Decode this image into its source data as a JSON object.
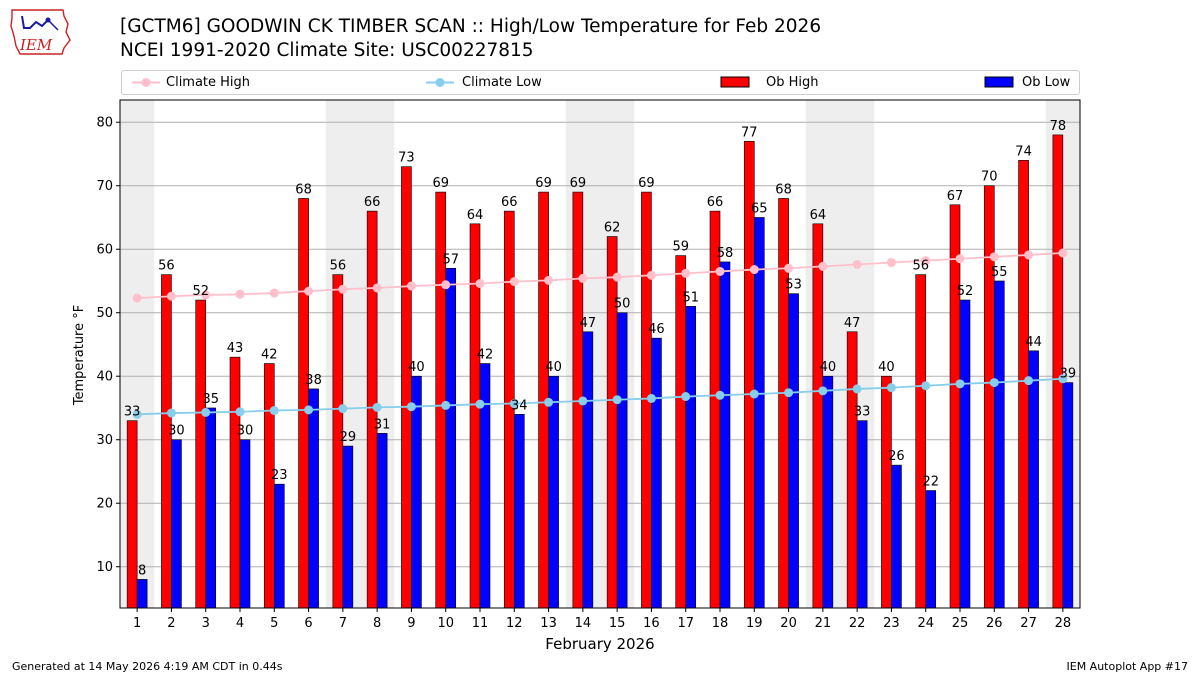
{
  "header": {
    "logo_text": "IEM",
    "title_line1": "[GCTM6] GOODWIN CK TIMBER SCAN :: High/Low Temperature for Feb 2026",
    "title_line2": "NCEI 1991-2020 Climate Site: USC00227815"
  },
  "legend": {
    "climate_high": "Climate High",
    "climate_low": "Climate Low",
    "ob_high": "Ob High",
    "ob_low": "Ob Low"
  },
  "footer": {
    "generated": "Generated at 14 May 2026 4:19 AM CDT in 0.44s",
    "app": "IEM Autoplot App #17"
  },
  "colors": {
    "ob_high": "#ff0000",
    "ob_low": "#0000ff",
    "climate_high": "#ffc0cb",
    "climate_low": "#87ceeb",
    "weekend_shade": "#eeeeee",
    "grid": "#b0b0b0"
  },
  "chart_data": {
    "type": "bar",
    "xlabel": "February 2026",
    "ylabel": "Temperature °F",
    "ylim": [
      3.5,
      83.5
    ],
    "yticks": [
      10,
      20,
      30,
      40,
      50,
      60,
      70,
      80
    ],
    "grid": "horizontal",
    "legend_position": "top",
    "weekend_shaded_days": [
      1,
      7,
      8,
      14,
      15,
      21,
      22,
      28
    ],
    "categories": [
      1,
      2,
      3,
      4,
      5,
      6,
      7,
      8,
      9,
      10,
      11,
      12,
      13,
      14,
      15,
      16,
      17,
      18,
      19,
      20,
      21,
      22,
      23,
      24,
      25,
      26,
      27,
      28
    ],
    "ob_high": [
      33,
      56,
      52,
      43,
      42,
      68,
      56,
      66,
      73,
      69,
      64,
      66,
      69,
      69,
      62,
      69,
      59,
      66,
      77,
      68,
      64,
      47,
      40,
      56,
      67,
      70,
      74,
      78
    ],
    "ob_low": [
      8,
      30,
      35,
      30,
      23,
      38,
      29,
      31,
      40,
      57,
      42,
      34,
      40,
      47,
      50,
      46,
      51,
      58,
      65,
      53,
      40,
      33,
      26,
      22,
      52,
      55,
      44,
      39
    ],
    "climate_high": [
      52.3,
      52.6,
      52.8,
      52.9,
      53.1,
      53.4,
      53.7,
      53.9,
      54.2,
      54.4,
      54.6,
      54.9,
      55.1,
      55.4,
      55.6,
      55.9,
      56.2,
      56.5,
      56.8,
      57.0,
      57.3,
      57.6,
      57.9,
      58.2,
      58.5,
      58.8,
      59.1,
      59.4
    ],
    "climate_low": [
      34.0,
      34.2,
      34.3,
      34.4,
      34.6,
      34.7,
      34.9,
      35.1,
      35.2,
      35.4,
      35.6,
      35.7,
      35.9,
      36.1,
      36.3,
      36.5,
      36.8,
      37.0,
      37.2,
      37.4,
      37.7,
      38.0,
      38.2,
      38.5,
      38.8,
      39.0,
      39.3,
      39.6
    ]
  }
}
